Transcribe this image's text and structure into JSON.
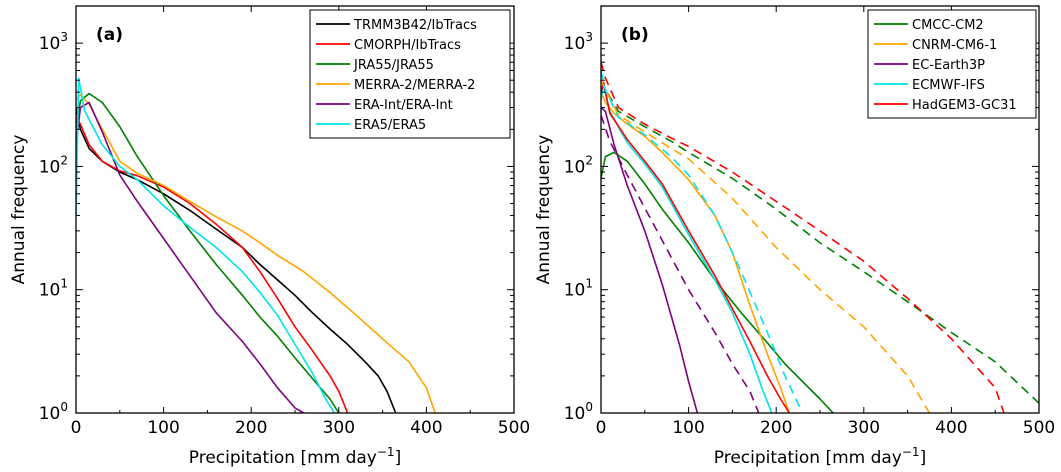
{
  "chart_data": [
    {
      "type": "line",
      "panel_label": "(a)",
      "xlabel": "Precipitation [mm day",
      "xlabel_sup": "−1",
      "xlabel_end": "]",
      "ylabel": "Annual frequency",
      "xlim": [
        0,
        500
      ],
      "ylim": [
        1,
        2000
      ],
      "yscale": "log",
      "xticks": [
        0,
        100,
        200,
        300,
        400,
        500
      ],
      "yticks": [
        {
          "base": "10",
          "exp": "0",
          "value": 1
        },
        {
          "base": "10",
          "exp": "1",
          "value": 10
        },
        {
          "base": "10",
          "exp": "2",
          "value": 100
        },
        {
          "base": "10",
          "exp": "3",
          "value": 1000
        }
      ],
      "legend_position": "top-right",
      "series": [
        {
          "name": "TRMM3B42/IbTracs",
          "color": "#000000",
          "dashed": false,
          "points": [
            [
              0,
              300
            ],
            [
              5,
              200
            ],
            [
              15,
              140
            ],
            [
              30,
              110
            ],
            [
              50,
              90
            ],
            [
              70,
              78
            ],
            [
              100,
              60
            ],
            [
              130,
              44
            ],
            [
              160,
              31
            ],
            [
              190,
              22
            ],
            [
              210,
              16
            ],
            [
              230,
              12
            ],
            [
              250,
              9
            ],
            [
              270,
              6.5
            ],
            [
              290,
              4.8
            ],
            [
              310,
              3.6
            ],
            [
              330,
              2.6
            ],
            [
              345,
              2.0
            ],
            [
              355,
              1.5
            ],
            [
              365,
              1.0
            ]
          ]
        },
        {
          "name": "CMORPH/IbTracs",
          "color": "#ff0000",
          "dashed": false,
          "points": [
            [
              0,
              250
            ],
            [
              5,
              220
            ],
            [
              15,
              150
            ],
            [
              30,
              110
            ],
            [
              50,
              92
            ],
            [
              70,
              84
            ],
            [
              100,
              68
            ],
            [
              130,
              50
            ],
            [
              160,
              34
            ],
            [
              190,
              22
            ],
            [
              210,
              14
            ],
            [
              230,
              8.5
            ],
            [
              250,
              5
            ],
            [
              270,
              3.2
            ],
            [
              290,
              2.0
            ],
            [
              300,
              1.5
            ],
            [
              310,
              1.0
            ]
          ]
        },
        {
          "name": "JRA55/JRA55",
          "color": "#008000",
          "dashed": false,
          "points": [
            [
              0,
              200
            ],
            [
              5,
              340
            ],
            [
              15,
              390
            ],
            [
              30,
              330
            ],
            [
              50,
              210
            ],
            [
              70,
              120
            ],
            [
              100,
              58
            ],
            [
              130,
              30
            ],
            [
              160,
              16
            ],
            [
              190,
              9
            ],
            [
              210,
              6
            ],
            [
              230,
              4.2
            ],
            [
              250,
              2.8
            ],
            [
              270,
              1.9
            ],
            [
              290,
              1.3
            ],
            [
              300,
              1.0
            ]
          ]
        },
        {
          "name": "MERRA-2/MERRA-2",
          "color": "#ffa500",
          "dashed": false,
          "points": [
            [
              0,
              350
            ],
            [
              5,
              380
            ],
            [
              15,
              320
            ],
            [
              30,
              200
            ],
            [
              50,
              110
            ],
            [
              70,
              88
            ],
            [
              100,
              70
            ],
            [
              130,
              52
            ],
            [
              160,
              39
            ],
            [
              190,
              30
            ],
            [
              210,
              24
            ],
            [
              230,
              19
            ],
            [
              260,
              14
            ],
            [
              290,
              9.5
            ],
            [
              320,
              6.2
            ],
            [
              350,
              4.0
            ],
            [
              380,
              2.6
            ],
            [
              400,
              1.6
            ],
            [
              410,
              1.0
            ]
          ]
        },
        {
          "name": "ERA-Int/ERA-Int",
          "color": "#800080",
          "dashed": false,
          "points": [
            [
              0,
              150
            ],
            [
              5,
              300
            ],
            [
              15,
              330
            ],
            [
              30,
              190
            ],
            [
              50,
              85
            ],
            [
              70,
              52
            ],
            [
              100,
              26
            ],
            [
              130,
              13
            ],
            [
              160,
              6.5
            ],
            [
              190,
              3.8
            ],
            [
              210,
              2.5
            ],
            [
              230,
              1.6
            ],
            [
              250,
              1.1
            ],
            [
              260,
              1.0
            ]
          ]
        },
        {
          "name": "ERA5/ERA5",
          "color": "#00e5e5",
          "dashed": false,
          "points": [
            [
              0,
              40
            ],
            [
              3,
              520
            ],
            [
              10,
              280
            ],
            [
              30,
              150
            ],
            [
              50,
              100
            ],
            [
              70,
              78
            ],
            [
              100,
              48
            ],
            [
              130,
              32
            ],
            [
              160,
              22
            ],
            [
              190,
              14
            ],
            [
              210,
              9.5
            ],
            [
              230,
              6.2
            ],
            [
              250,
              3.6
            ],
            [
              270,
              2.1
            ],
            [
              285,
              1.3
            ],
            [
              295,
              1.0
            ]
          ]
        }
      ]
    },
    {
      "type": "line",
      "panel_label": "(b)",
      "xlabel": "Precipitation [mm day",
      "xlabel_sup": "−1",
      "xlabel_end": "]",
      "ylabel": "Annual frequency",
      "xlim": [
        0,
        500
      ],
      "ylim": [
        1,
        2000
      ],
      "yscale": "log",
      "xticks": [
        0,
        100,
        200,
        300,
        400,
        500
      ],
      "yticks": [
        {
          "base": "10",
          "exp": "0",
          "value": 1
        },
        {
          "base": "10",
          "exp": "1",
          "value": 10
        },
        {
          "base": "10",
          "exp": "2",
          "value": 100
        },
        {
          "base": "10",
          "exp": "3",
          "value": 1000
        }
      ],
      "legend_position": "top-right",
      "series": [
        {
          "name": "CMCC-CM2",
          "color": "#008000",
          "dashed": false,
          "points": [
            [
              0,
              80
            ],
            [
              5,
              120
            ],
            [
              15,
              130
            ],
            [
              30,
              110
            ],
            [
              50,
              72
            ],
            [
              70,
              45
            ],
            [
              100,
              24
            ],
            [
              130,
              12
            ],
            [
              160,
              6.5
            ],
            [
              190,
              3.7
            ],
            [
              210,
              2.5
            ],
            [
              230,
              1.8
            ],
            [
              250,
              1.3
            ],
            [
              265,
              1.0
            ]
          ]
        },
        {
          "name": "CNRM-CM6-1",
          "color": "#ffa500",
          "dashed": false,
          "points": [
            [
              0,
              400
            ],
            [
              5,
              330
            ],
            [
              15,
              270
            ],
            [
              30,
              220
            ],
            [
              50,
              175
            ],
            [
              70,
              130
            ],
            [
              100,
              78
            ],
            [
              130,
              40
            ],
            [
              150,
              20
            ],
            [
              170,
              7.5
            ],
            [
              190,
              3
            ],
            [
              205,
              1.6
            ],
            [
              215,
              1.0
            ]
          ]
        },
        {
          "name": "EC-Earth3P",
          "color": "#800080",
          "dashed": false,
          "points": [
            [
              0,
              300
            ],
            [
              5,
              280
            ],
            [
              15,
              150
            ],
            [
              30,
              70
            ],
            [
              50,
              30
            ],
            [
              70,
              11
            ],
            [
              90,
              3.5
            ],
            [
              100,
              1.8
            ],
            [
              110,
              1.0
            ]
          ]
        },
        {
          "name": "ECMWF-IFS",
          "color": "#00e5e5",
          "dashed": false,
          "points": [
            [
              0,
              350
            ],
            [
              3,
              450
            ],
            [
              10,
              280
            ],
            [
              30,
              155
            ],
            [
              50,
              105
            ],
            [
              70,
              68
            ],
            [
              100,
              28
            ],
            [
              130,
              12
            ],
            [
              150,
              6.5
            ],
            [
              170,
              3
            ],
            [
              185,
              1.5
            ],
            [
              195,
              1.0
            ]
          ]
        },
        {
          "name": "HadGEM3-GC31",
          "color": "#ff0000",
          "dashed": false,
          "points": [
            [
              0,
              400
            ],
            [
              3,
              480
            ],
            [
              10,
              270
            ],
            [
              30,
              165
            ],
            [
              50,
              110
            ],
            [
              70,
              72
            ],
            [
              100,
              30
            ],
            [
              130,
              13
            ],
            [
              150,
              7
            ],
            [
              170,
              3.8
            ],
            [
              190,
              2.0
            ],
            [
              205,
              1.3
            ],
            [
              215,
              1.0
            ]
          ]
        },
        {
          "name": "",
          "color": "#008000",
          "dashed": true,
          "points": [
            [
              0,
              500
            ],
            [
              5,
              420
            ],
            [
              20,
              280
            ],
            [
              50,
              210
            ],
            [
              80,
              160
            ],
            [
              100,
              130
            ],
            [
              150,
              80
            ],
            [
              200,
              45
            ],
            [
              250,
              24
            ],
            [
              300,
              14
            ],
            [
              350,
              8
            ],
            [
              400,
              4.5
            ],
            [
              450,
              2.6
            ],
            [
              500,
              1.2
            ]
          ]
        },
        {
          "name": "",
          "color": "#ffa500",
          "dashed": true,
          "points": [
            [
              0,
              500
            ],
            [
              5,
              420
            ],
            [
              20,
              260
            ],
            [
              50,
              190
            ],
            [
              80,
              140
            ],
            [
              100,
              115
            ],
            [
              150,
              55
            ],
            [
              200,
              22
            ],
            [
              250,
              10
            ],
            [
              300,
              5
            ],
            [
              350,
              2
            ],
            [
              375,
              1.0
            ]
          ]
        },
        {
          "name": "",
          "color": "#800080",
          "dashed": true,
          "points": [
            [
              0,
              260
            ],
            [
              10,
              160
            ],
            [
              30,
              85
            ],
            [
              50,
              46
            ],
            [
              70,
              25
            ],
            [
              100,
              10
            ],
            [
              130,
              4.5
            ],
            [
              150,
              2.5
            ],
            [
              170,
              1.5
            ],
            [
              180,
              1.0
            ]
          ]
        },
        {
          "name": "",
          "color": "#00e5e5",
          "dashed": true,
          "points": [
            [
              0,
              600
            ],
            [
              5,
              420
            ],
            [
              20,
              250
            ],
            [
              50,
              180
            ],
            [
              80,
              120
            ],
            [
              100,
              85
            ],
            [
              130,
              40
            ],
            [
              160,
              14
            ],
            [
              190,
              4.5
            ],
            [
              210,
              2.0
            ],
            [
              230,
              1.0
            ]
          ]
        },
        {
          "name": "",
          "color": "#ff0000",
          "dashed": true,
          "points": [
            [
              0,
              700
            ],
            [
              5,
              520
            ],
            [
              20,
              300
            ],
            [
              50,
              220
            ],
            [
              80,
              170
            ],
            [
              100,
              145
            ],
            [
              150,
              90
            ],
            [
              200,
              52
            ],
            [
              250,
              30
            ],
            [
              300,
              17
            ],
            [
              350,
              8.5
            ],
            [
              400,
              4
            ],
            [
              450,
              1.6
            ],
            [
              460,
              1.0
            ]
          ]
        }
      ]
    }
  ]
}
